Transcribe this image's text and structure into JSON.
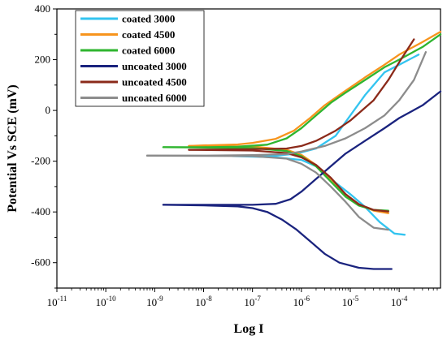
{
  "chart_data": {
    "type": "line",
    "title": "",
    "xlabel": "Log I",
    "ylabel": "Potential Vs SCE (mV)",
    "x_scale": "log",
    "xlim": [
      1e-11,
      0.0007
    ],
    "ylim": [
      -700,
      400
    ],
    "x_tick_values": [
      1e-11,
      1e-10,
      1e-09,
      1e-08,
      1e-07,
      1e-06,
      1e-05,
      0.0001
    ],
    "x_tick_labels": [
      {
        "base": "10",
        "exp": "-11"
      },
      {
        "base": "10",
        "exp": "-10"
      },
      {
        "base": "10",
        "exp": "-9"
      },
      {
        "base": "10",
        "exp": "-8"
      },
      {
        "base": "10",
        "exp": "-7"
      },
      {
        "base": "10",
        "exp": "-6"
      },
      {
        "base": "10",
        "exp": "-5"
      },
      {
        "base": "10",
        "exp": "-4"
      }
    ],
    "y_ticks": [
      400,
      200,
      0,
      -200,
      -400,
      -600
    ],
    "y_tick_labels": [
      "400",
      "200",
      "0",
      "-200",
      "-400",
      "-600"
    ],
    "grid": false,
    "legend_position": "top-left",
    "series": [
      {
        "name": "coated 3000",
        "color": "#33c4f0",
        "anodic": [
          [
            4e-08,
            -180
          ],
          [
            3e-07,
            -178
          ],
          [
            8e-07,
            -170
          ],
          [
            2e-06,
            -150
          ],
          [
            5e-06,
            -100
          ],
          [
            1e-05,
            -20
          ],
          [
            2e-05,
            60
          ],
          [
            5e-05,
            150
          ],
          [
            0.0001,
            180
          ],
          [
            0.00025,
            220
          ]
        ],
        "cathodic": [
          [
            4e-08,
            -180
          ],
          [
            3e-07,
            -185
          ],
          [
            1e-06,
            -195
          ],
          [
            2e-06,
            -220
          ],
          [
            4e-06,
            -270
          ],
          [
            1e-05,
            -330
          ],
          [
            2e-05,
            -380
          ],
          [
            4e-05,
            -440
          ],
          [
            8e-05,
            -485
          ],
          [
            0.00013,
            -490
          ]
        ]
      },
      {
        "name": "coated 4500",
        "color": "#f7941d",
        "anodic": [
          [
            5e-09,
            -140
          ],
          [
            1e-08,
            -138
          ],
          [
            5e-08,
            -134
          ],
          [
            1e-07,
            -128
          ],
          [
            3e-07,
            -112
          ],
          [
            7e-07,
            -80
          ],
          [
            1.5e-06,
            -30
          ],
          [
            3e-06,
            20
          ],
          [
            7e-06,
            70
          ],
          [
            2e-05,
            130
          ],
          [
            5e-05,
            180
          ],
          [
            0.0001,
            220
          ],
          [
            0.0003,
            270
          ],
          [
            0.0007,
            310
          ]
        ],
        "cathodic": [
          [
            5e-09,
            -140
          ],
          [
            1e-07,
            -142
          ],
          [
            5e-07,
            -155
          ],
          [
            1e-06,
            -175
          ],
          [
            2e-06,
            -215
          ],
          [
            4e-06,
            -270
          ],
          [
            8e-06,
            -330
          ],
          [
            1.5e-05,
            -370
          ],
          [
            3e-05,
            -395
          ],
          [
            6e-05,
            -405
          ]
        ]
      },
      {
        "name": "coated 6000",
        "color": "#2fb52f",
        "anodic": [
          [
            1.5e-09,
            -145
          ],
          [
            1e-08,
            -145
          ],
          [
            5e-08,
            -143
          ],
          [
            2e-07,
            -135
          ],
          [
            5e-07,
            -110
          ],
          [
            1e-06,
            -70
          ],
          [
            2e-06,
            -20
          ],
          [
            4e-06,
            30
          ],
          [
            8e-06,
            70
          ],
          [
            2e-05,
            120
          ],
          [
            5e-05,
            170
          ],
          [
            0.0001,
            200
          ],
          [
            0.0003,
            250
          ],
          [
            0.0007,
            300
          ]
        ],
        "cathodic": [
          [
            1.5e-09,
            -145
          ],
          [
            1e-07,
            -148
          ],
          [
            5e-07,
            -160
          ],
          [
            1e-06,
            -180
          ],
          [
            2e-06,
            -220
          ],
          [
            4e-06,
            -280
          ],
          [
            8e-06,
            -340
          ],
          [
            1.5e-05,
            -375
          ],
          [
            3e-05,
            -392
          ],
          [
            6e-05,
            -395
          ]
        ]
      },
      {
        "name": "uncoated 3000",
        "color": "#1a237e",
        "anodic": [
          [
            1.5e-09,
            -372
          ],
          [
            1e-08,
            -372
          ],
          [
            1e-07,
            -372
          ],
          [
            3e-07,
            -368
          ],
          [
            6e-07,
            -350
          ],
          [
            1e-06,
            -320
          ],
          [
            2e-06,
            -270
          ],
          [
            4e-06,
            -220
          ],
          [
            8e-06,
            -170
          ],
          [
            2e-05,
            -120
          ],
          [
            5e-05,
            -70
          ],
          [
            0.0001,
            -30
          ],
          [
            0.0003,
            20
          ],
          [
            0.0007,
            75
          ]
        ],
        "cathodic": [
          [
            1.5e-09,
            -372
          ],
          [
            1e-08,
            -374
          ],
          [
            5e-08,
            -378
          ],
          [
            1e-07,
            -385
          ],
          [
            2e-07,
            -400
          ],
          [
            4e-07,
            -430
          ],
          [
            8e-07,
            -470
          ],
          [
            1.5e-06,
            -515
          ],
          [
            3e-06,
            -565
          ],
          [
            6e-06,
            -600
          ],
          [
            1.5e-05,
            -620
          ],
          [
            3e-05,
            -625
          ],
          [
            7e-05,
            -625
          ]
        ]
      },
      {
        "name": "uncoated 4500",
        "color": "#8b2a1a",
        "anodic": [
          [
            5e-09,
            -155
          ],
          [
            1e-07,
            -153
          ],
          [
            5e-07,
            -150
          ],
          [
            1e-06,
            -140
          ],
          [
            2e-06,
            -120
          ],
          [
            5e-06,
            -80
          ],
          [
            1e-05,
            -40
          ],
          [
            3e-05,
            40
          ],
          [
            6e-05,
            120
          ],
          [
            0.0001,
            190
          ],
          [
            0.0002,
            280
          ]
        ],
        "cathodic": [
          [
            5e-09,
            -155
          ],
          [
            1e-07,
            -158
          ],
          [
            5e-07,
            -168
          ],
          [
            1e-06,
            -185
          ],
          [
            2e-06,
            -215
          ],
          [
            4e-06,
            -265
          ],
          [
            8e-06,
            -330
          ],
          [
            1.5e-05,
            -370
          ],
          [
            3e-05,
            -392
          ],
          [
            6e-05,
            -398
          ]
        ]
      },
      {
        "name": "uncoated 6000",
        "color": "#8c8c8c",
        "anodic": [
          [
            7e-10,
            -178
          ],
          [
            1e-08,
            -178
          ],
          [
            1e-07,
            -176
          ],
          [
            5e-07,
            -172
          ],
          [
            1e-06,
            -162
          ],
          [
            3e-06,
            -140
          ],
          [
            8e-06,
            -110
          ],
          [
            2e-05,
            -70
          ],
          [
            5e-05,
            -20
          ],
          [
            0.0001,
            40
          ],
          [
            0.0002,
            120
          ],
          [
            0.00035,
            230
          ]
        ],
        "cathodic": [
          [
            7e-10,
            -178
          ],
          [
            1e-07,
            -180
          ],
          [
            5e-07,
            -190
          ],
          [
            1e-06,
            -210
          ],
          [
            2e-06,
            -245
          ],
          [
            4e-06,
            -300
          ],
          [
            8e-06,
            -360
          ],
          [
            1.5e-05,
            -420
          ],
          [
            3e-05,
            -462
          ],
          [
            6e-05,
            -470
          ]
        ]
      }
    ]
  }
}
